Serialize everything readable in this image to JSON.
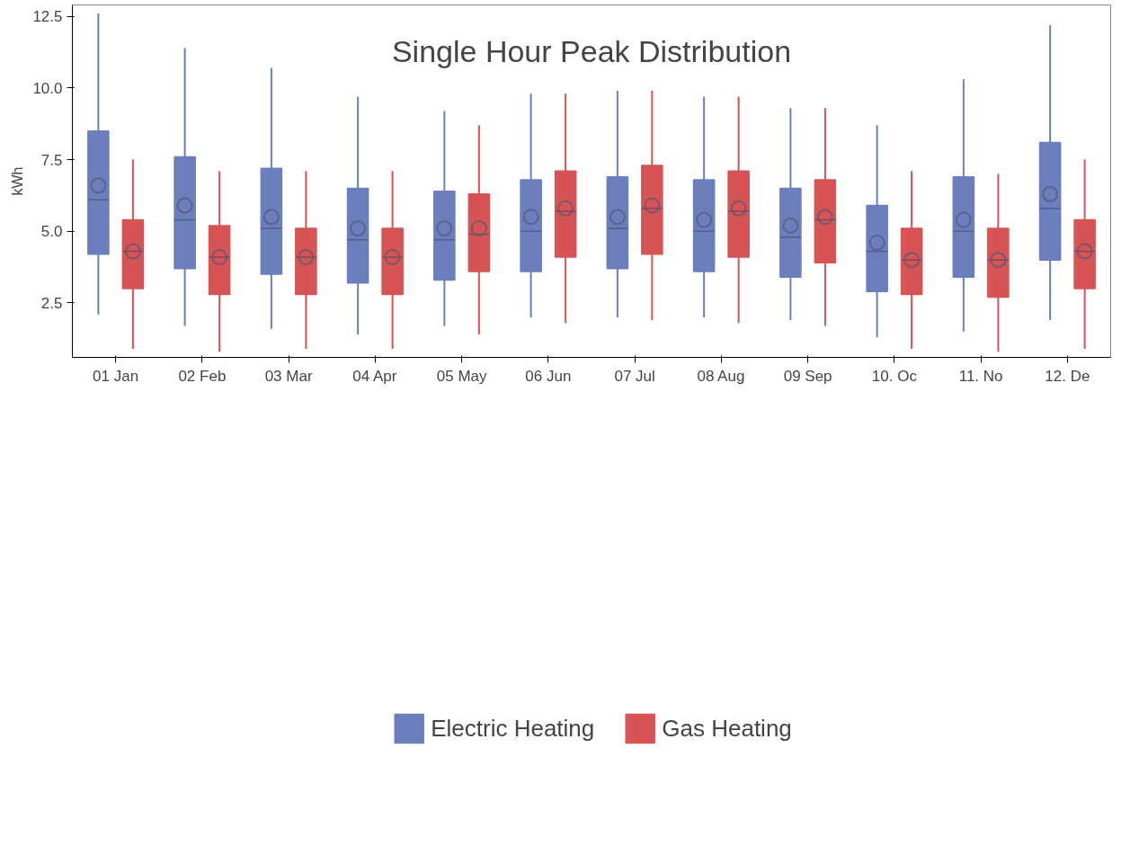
{
  "chart_data": {
    "type": "box",
    "title": "Single Hour Peak Distribution",
    "ylabel": "kWh",
    "categories": [
      "01 Jan",
      "02 Feb",
      "03 Mar",
      "04 Apr",
      "05 May",
      "06 Jun",
      "07 Jul",
      "08 Aug",
      "09 Sep",
      "10. Oc",
      "11. No",
      "12. De"
    ],
    "ylim": [
      0.6,
      12.9
    ],
    "yticks": [
      {
        "value": 2.5,
        "label": "2.5"
      },
      {
        "value": 5,
        "label": "5.0"
      },
      {
        "value": 7.5,
        "label": "7.5"
      },
      {
        "value": 10,
        "label": "10.0"
      },
      {
        "value": 12.5,
        "label": "12.5"
      }
    ],
    "grid": false,
    "legend": "bottom",
    "series": [
      {
        "name": "Electric Heating",
        "color": "#6b7fbd",
        "boxes": [
          {
            "low": 2.1,
            "q1": 4.2,
            "median": 6.1,
            "q3": 8.5,
            "high": 12.6,
            "mean": 6.6
          },
          {
            "low": 1.7,
            "q1": 3.7,
            "median": 5.4,
            "q3": 7.6,
            "high": 11.4,
            "mean": 5.9
          },
          {
            "low": 1.6,
            "q1": 3.5,
            "median": 5.1,
            "q3": 7.2,
            "high": 10.7,
            "mean": 5.5
          },
          {
            "low": 1.4,
            "q1": 3.2,
            "median": 4.7,
            "q3": 6.5,
            "high": 9.7,
            "mean": 5.1
          },
          {
            "low": 1.7,
            "q1": 3.3,
            "median": 4.7,
            "q3": 6.4,
            "high": 9.2,
            "mean": 5.1
          },
          {
            "low": 2.0,
            "q1": 3.6,
            "median": 5.0,
            "q3": 6.8,
            "high": 9.8,
            "mean": 5.5
          },
          {
            "low": 2.0,
            "q1": 3.7,
            "median": 5.1,
            "q3": 6.9,
            "high": 9.9,
            "mean": 5.5
          },
          {
            "low": 2.0,
            "q1": 3.6,
            "median": 5.0,
            "q3": 6.8,
            "high": 9.7,
            "mean": 5.4
          },
          {
            "low": 1.9,
            "q1": 3.4,
            "median": 4.8,
            "q3": 6.5,
            "high": 9.3,
            "mean": 5.2
          },
          {
            "low": 1.3,
            "q1": 2.9,
            "median": 4.3,
            "q3": 5.9,
            "high": 8.7,
            "mean": 4.6
          },
          {
            "low": 1.5,
            "q1": 3.4,
            "median": 5.0,
            "q3": 6.9,
            "high": 10.3,
            "mean": 5.4
          },
          {
            "low": 1.9,
            "q1": 4.0,
            "median": 5.8,
            "q3": 8.1,
            "high": 12.2,
            "mean": 6.3
          }
        ]
      },
      {
        "name": "Gas Heating",
        "color": "#d65454",
        "boxes": [
          {
            "low": 0.9,
            "q1": 3.0,
            "median": 4.3,
            "q3": 5.4,
            "high": 7.5,
            "mean": 4.3
          },
          {
            "low": 0.8,
            "q1": 2.8,
            "median": 4.1,
            "q3": 5.2,
            "high": 7.1,
            "mean": 4.1
          },
          {
            "low": 0.9,
            "q1": 2.8,
            "median": 4.1,
            "q3": 5.1,
            "high": 7.1,
            "mean": 4.1
          },
          {
            "low": 0.9,
            "q1": 2.8,
            "median": 4.1,
            "q3": 5.1,
            "high": 7.1,
            "mean": 4.1
          },
          {
            "low": 1.4,
            "q1": 3.6,
            "median": 4.9,
            "q3": 6.3,
            "high": 8.7,
            "mean": 5.1
          },
          {
            "low": 1.8,
            "q1": 4.1,
            "median": 5.7,
            "q3": 7.1,
            "high": 9.8,
            "mean": 5.8
          },
          {
            "low": 1.9,
            "q1": 4.2,
            "median": 5.8,
            "q3": 7.3,
            "high": 9.9,
            "mean": 5.9
          },
          {
            "low": 1.8,
            "q1": 4.1,
            "median": 5.7,
            "q3": 7.1,
            "high": 9.7,
            "mean": 5.8
          },
          {
            "low": 1.7,
            "q1": 3.9,
            "median": 5.4,
            "q3": 6.8,
            "high": 9.3,
            "mean": 5.5
          },
          {
            "low": 0.9,
            "q1": 2.8,
            "median": 4.0,
            "q3": 5.1,
            "high": 7.1,
            "mean": 4.0
          },
          {
            "low": 0.8,
            "q1": 2.7,
            "median": 4.0,
            "q3": 5.1,
            "high": 7.0,
            "mean": 4.0
          },
          {
            "low": 0.9,
            "q1": 3.0,
            "median": 4.3,
            "q3": 5.4,
            "high": 7.5,
            "mean": 4.3
          }
        ]
      }
    ]
  }
}
